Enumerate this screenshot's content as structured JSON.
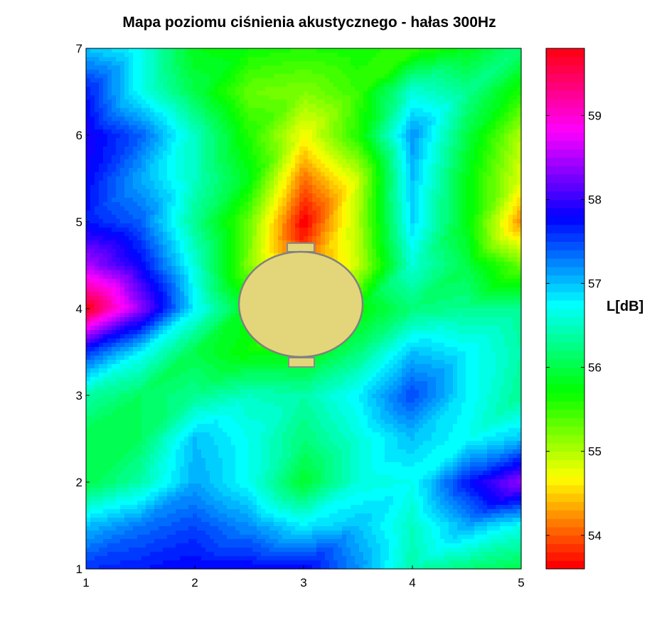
{
  "chart_data": {
    "type": "heatmap",
    "title": "Mapa poziomu ciśnienia akustycznego - hałas 300Hz",
    "xlabel": "",
    "ylabel": "",
    "colorbar_label": "L[dB]",
    "xlim": [
      1,
      5
    ],
    "ylim": [
      1,
      7
    ],
    "clim": [
      53.6,
      59.8
    ],
    "x_ticks": [
      "1",
      "2",
      "3",
      "4",
      "5"
    ],
    "y_ticks": [
      "1",
      "2",
      "3",
      "4",
      "5",
      "6",
      "7"
    ],
    "colorbar_ticks": [
      "54",
      "55",
      "56",
      "57",
      "58",
      "59"
    ],
    "colormap": "hsv",
    "x": [
      1,
      1.5,
      2,
      2.5,
      3,
      3.5,
      4,
      4.5,
      5
    ],
    "y": [
      7,
      6.5,
      6,
      5.5,
      5,
      4.5,
      4,
      3.5,
      3,
      2.5,
      2,
      1.5,
      1
    ],
    "z": [
      [
        57.0,
        56.7,
        55.8,
        55.7,
        55.6,
        55.7,
        55.5,
        55.8,
        56.2
      ],
      [
        57.7,
        56.7,
        56.0,
        55.3,
        55.2,
        55.5,
        56.6,
        56.3,
        55.6
      ],
      [
        57.9,
        57.4,
        56.5,
        55.6,
        54.7,
        55.6,
        57.2,
        56.0,
        55.0
      ],
      [
        57.8,
        57.1,
        56.5,
        55.8,
        54.1,
        54.9,
        57.0,
        55.8,
        54.8
      ],
      [
        57.7,
        57.4,
        56.3,
        55.3,
        53.6,
        55.0,
        56.9,
        55.8,
        54.2
      ],
      [
        58.5,
        57.8,
        56.6,
        55.2,
        54.0,
        54.9,
        56.6,
        56.0,
        55.3
      ],
      [
        59.8,
        58.4,
        56.8,
        55.8,
        54.8,
        55.7,
        56.2,
        56.3,
        56.3
      ],
      [
        57.6,
        56.8,
        56.0,
        55.7,
        55.7,
        56.2,
        57.0,
        56.8,
        56.4
      ],
      [
        56.4,
        56.1,
        56.3,
        56.5,
        56.4,
        56.8,
        57.5,
        56.8,
        56.3
      ],
      [
        56.0,
        56.1,
        57.0,
        56.7,
        56.2,
        56.6,
        57.0,
        56.7,
        57.0
      ],
      [
        56.0,
        56.4,
        57.1,
        56.7,
        55.9,
        56.6,
        56.7,
        57.7,
        58.4
      ],
      [
        57.0,
        57.3,
        57.5,
        57.2,
        56.8,
        57.0,
        56.5,
        57.1,
        56.7
      ],
      [
        57.6,
        57.7,
        57.8,
        57.8,
        57.8,
        57.2,
        56.4,
        56.2,
        56.0
      ]
    ],
    "obstacle_color": "#e3d67a"
  }
}
